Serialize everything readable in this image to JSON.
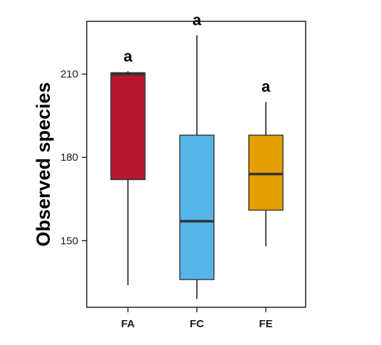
{
  "chart_data": {
    "type": "boxplot",
    "title": "",
    "xlabel": "",
    "ylabel": "Observed species",
    "ylim": [
      126,
      229
    ],
    "yticks": [
      150,
      180,
      210
    ],
    "grid": false,
    "legend": "none",
    "categories": [
      "FA",
      "FC",
      "FE"
    ],
    "boxes": [
      {
        "category": "FA",
        "min": 134,
        "q1": 172,
        "median": 210,
        "q3": 210.5,
        "max": 211,
        "color": "#b5182e",
        "label": "a"
      },
      {
        "category": "FC",
        "min": 129,
        "q1": 136,
        "median": 157,
        "q3": 188,
        "max": 224,
        "color": "#56b4e9",
        "label": "a"
      },
      {
        "category": "FE",
        "min": 148,
        "q1": 161,
        "median": 174,
        "q3": 188,
        "max": 200,
        "color": "#e69f00",
        "label": "a"
      }
    ]
  }
}
